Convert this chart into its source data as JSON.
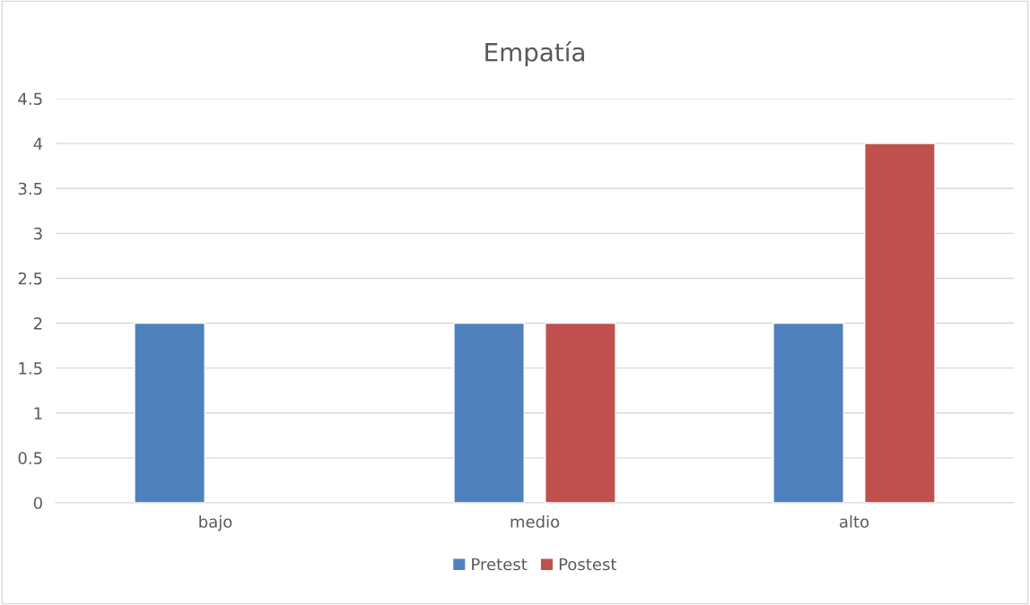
{
  "chart_data": {
    "type": "bar",
    "title": "Empatía",
    "categories": [
      "bajo",
      "medio",
      "alto"
    ],
    "series": [
      {
        "name": "Pretest",
        "color": "#4f81bd",
        "values": [
          2,
          2,
          2
        ]
      },
      {
        "name": "Postest",
        "color": "#c0504d",
        "values": [
          null,
          2,
          4
        ]
      }
    ],
    "ylim": [
      0,
      4.5
    ],
    "yticks": [
      0,
      0.5,
      1,
      1.5,
      2,
      2.5,
      3,
      3.5,
      4,
      4.5
    ],
    "grid": "y",
    "legend": "bottom"
  }
}
